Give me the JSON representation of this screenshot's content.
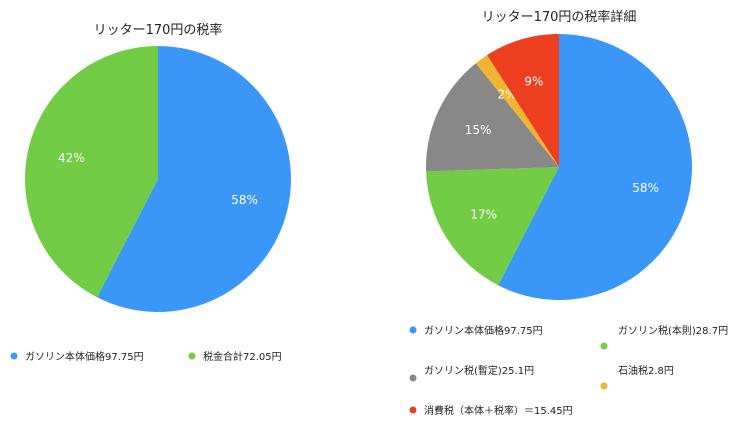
{
  "chart_data": [
    {
      "type": "pie",
      "title": "リッター170円の税率",
      "slices": [
        {
          "name": "ガソリン本体価格97.75円",
          "value": 97.75,
          "label": "58%",
          "color": "#3a97f8"
        },
        {
          "name": "税金合計72.05円",
          "value": 72.05,
          "label": "42%",
          "color": "#72cc45"
        }
      ],
      "legend": "bottom"
    },
    {
      "type": "pie",
      "title": "リッター170円の税率詳細",
      "slices": [
        {
          "name": "ガソリン本体価格97.75円",
          "value": 97.75,
          "label": "58%",
          "color": "#3a97f8"
        },
        {
          "name": "ガソリン税(本則)28.7円",
          "value": 28.7,
          "label": "17%",
          "color": "#72cc45"
        },
        {
          "name": "ガソリン税(暫定)25.1円",
          "value": 25.1,
          "label": "15%",
          "color": "#888888"
        },
        {
          "name": "石油税2.8円",
          "value": 2.8,
          "label": "2%",
          "color": "#f2b52f"
        },
        {
          "name": "消費税（本体＋税率）＝15.45円",
          "value": 15.45,
          "label": "9%",
          "color": "#ee3e20"
        }
      ],
      "legend": "bottom"
    }
  ]
}
